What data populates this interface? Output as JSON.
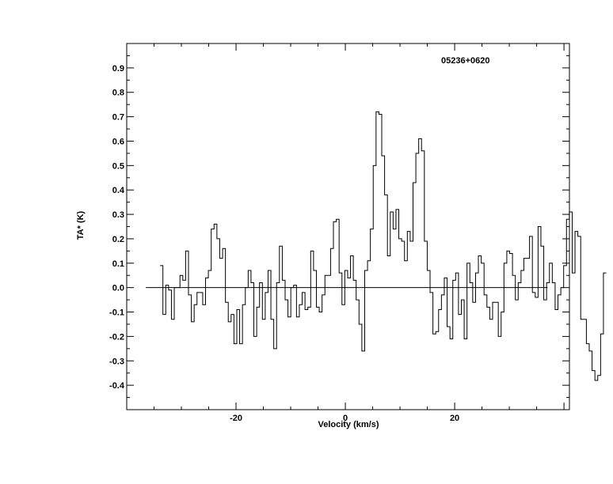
{
  "chart_data": {
    "type": "line",
    "style": "histogram-step",
    "title": "",
    "annotation": "05236+0620",
    "xlabel": "Velocity (km/s)",
    "ylabel": "TA* (K)",
    "xlim": [
      -40,
      41
    ],
    "ylim": [
      -0.5,
      1.0
    ],
    "x_ticks": [
      -20,
      0,
      20
    ],
    "y_ticks": [
      -0.4,
      -0.3,
      -0.2,
      -0.1,
      0.0,
      0.1,
      0.2,
      0.3,
      0.4,
      0.5,
      0.6,
      0.7,
      0.8,
      0.9
    ],
    "y_tick_labels": [
      "-0.4",
      "-0.3",
      "-0.2",
      "-0.1",
      "0.0",
      "0.1",
      "0.2",
      "0.3",
      "0.4",
      "0.5",
      "0.6",
      "0.7",
      "0.8",
      "0.9"
    ],
    "x_tick_labels": [
      "-20",
      "0",
      "20"
    ],
    "baseline": 0.0,
    "baseline_range": [
      -36.5,
      37
    ],
    "grid": false,
    "series": [
      {
        "x_start": -33.9,
        "channel_width": 0.52,
        "values": [
          0.09,
          -0.11,
          0.01,
          -0.01,
          -0.13,
          0.0,
          0.0,
          0.05,
          0.03,
          0.15,
          -0.03,
          -0.14,
          -0.07,
          -0.02,
          -0.02,
          -0.07,
          0.04,
          0.07,
          0.24,
          0.26,
          0.2,
          0.12,
          0.16,
          -0.06,
          -0.14,
          -0.11,
          -0.23,
          -0.09,
          -0.23,
          -0.07,
          0.0,
          0.07,
          0.02,
          -0.2,
          -0.08,
          0.02,
          -0.13,
          -0.02,
          0.07,
          -0.13,
          -0.25,
          0.02,
          0.17,
          0.03,
          -0.05,
          -0.12,
          0.0,
          0.01,
          -0.12,
          -0.07,
          -0.02,
          -0.09,
          -0.08,
          0.15,
          0.07,
          -0.08,
          -0.1,
          -0.03,
          0.05,
          0.05,
          0.16,
          0.27,
          0.28,
          0.06,
          -0.07,
          0.07,
          0.04,
          0.13,
          0.03,
          -0.05,
          -0.15,
          -0.26,
          0.07,
          0.11,
          0.24,
          0.5,
          0.72,
          0.71,
          0.54,
          0.38,
          0.13,
          0.31,
          0.24,
          0.32,
          0.2,
          0.19,
          0.11,
          0.23,
          0.19,
          0.43,
          0.55,
          0.61,
          0.56,
          0.19,
          0.07,
          -0.02,
          -0.19,
          -0.18,
          -0.09,
          -0.03,
          0.04,
          -0.16,
          -0.21,
          0.03,
          0.06,
          -0.11,
          -0.05,
          -0.21,
          0.1,
          0.02,
          -0.06,
          0.06,
          0.13,
          0.1,
          -0.03,
          -0.08,
          -0.13,
          -0.06,
          -0.06,
          -0.2,
          -0.1,
          0.1,
          0.15,
          0.14,
          0.05,
          -0.05,
          0.02,
          0.07,
          0.12,
          0.12,
          0.21,
          -0.02,
          -0.04,
          0.25,
          0.17,
          -0.05,
          0.02,
          0.1,
          0.02,
          -0.09,
          -0.03,
          0.0,
          0.09,
          0.28,
          0.31,
          0.06,
          0.23,
          0.21,
          -0.13,
          -0.13,
          -0.23,
          -0.26,
          -0.34,
          -0.38,
          -0.36,
          -0.19,
          0.06
        ]
      }
    ]
  }
}
